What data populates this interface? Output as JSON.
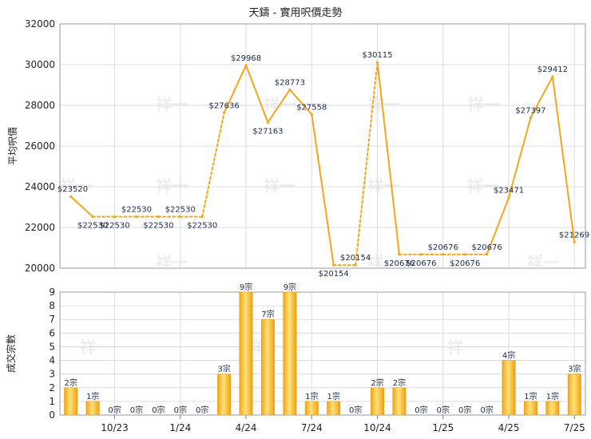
{
  "chart_data": [
    {
      "type": "line",
      "title": "天鑄 - 實用呎價走勢",
      "ylabel": "平均呎價",
      "ylim": [
        20000,
        32000
      ],
      "yticks": [
        20000,
        22000,
        24000,
        26000,
        28000,
        30000,
        32000
      ],
      "value_prefix": "$",
      "color": "#f5a51c",
      "grid": true,
      "values": [
        23520,
        22530,
        22530,
        22530,
        22530,
        22530,
        22530,
        27636,
        29968,
        27163,
        28773,
        27558,
        20154,
        20154,
        30115,
        20676,
        20676,
        20676,
        20676,
        20676,
        23471,
        27397,
        29412,
        21269
      ],
      "observed": [
        true,
        true,
        false,
        true,
        false,
        true,
        false,
        true,
        true,
        true,
        true,
        true,
        true,
        false,
        true,
        true,
        false,
        false,
        false,
        true,
        true,
        true,
        true,
        true
      ]
    },
    {
      "type": "bar",
      "ylabel": "成交宗數",
      "ylim": [
        0,
        9
      ],
      "yticks": [
        0,
        1,
        2,
        3,
        4,
        5,
        6,
        7,
        8,
        9
      ],
      "value_suffix": "宗",
      "color": "#f5a51c",
      "grid": true,
      "categories": [
        "",
        "",
        "10/23",
        "",
        "",
        "1/24",
        "",
        "",
        "4/24",
        "",
        "",
        "7/24",
        "",
        "",
        "10/24",
        "",
        "",
        "1/25",
        "",
        "",
        "4/25",
        "",
        "",
        "7/25"
      ],
      "values": [
        2,
        1,
        0,
        0,
        0,
        0,
        0,
        3,
        9,
        7,
        9,
        1,
        1,
        0,
        2,
        2,
        0,
        0,
        0,
        0,
        4,
        1,
        1,
        3
      ]
    }
  ],
  "watermark": "祥一"
}
